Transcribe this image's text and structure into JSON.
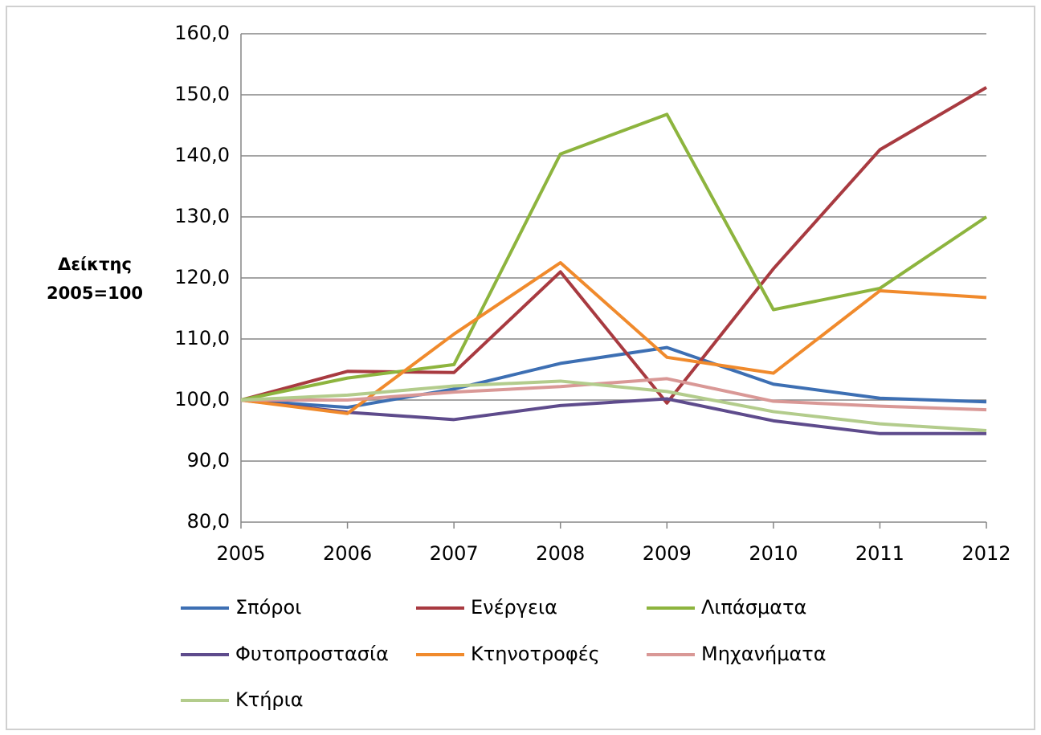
{
  "chart_data": {
    "type": "line",
    "y_label": [
      "Δείκτης",
      "2005=100"
    ],
    "categories": [
      "2005",
      "2006",
      "2007",
      "2008",
      "2009",
      "2010",
      "2011",
      "2012"
    ],
    "series": [
      {
        "name": "Σπόροι",
        "color": "#3d6fb3",
        "values": [
          100,
          98.8,
          101.8,
          106.0,
          108.6,
          102.6,
          100.3,
          99.7
        ]
      },
      {
        "name": "Ενέργεια",
        "color": "#a83a40",
        "values": [
          100,
          104.7,
          104.5,
          121.0,
          99.5,
          121.5,
          141.0,
          151.2
        ]
      },
      {
        "name": "Λιπάσματα",
        "color": "#8db43e",
        "values": [
          100,
          103.6,
          105.8,
          140.3,
          146.8,
          114.8,
          118.3,
          130.0
        ]
      },
      {
        "name": "Φυτοπροστασία",
        "color": "#5e4b8c",
        "values": [
          100,
          98.0,
          96.8,
          99.1,
          100.2,
          96.6,
          94.5,
          94.5
        ]
      },
      {
        "name": "Κτηνοτροφές",
        "color": "#f08a2c",
        "values": [
          100,
          97.8,
          110.8,
          122.5,
          107.0,
          104.4,
          117.9,
          116.8
        ]
      },
      {
        "name": "Μηχανήματα",
        "color": "#d99896",
        "values": [
          100,
          100.0,
          101.3,
          102.2,
          103.5,
          99.8,
          99.0,
          98.4
        ]
      },
      {
        "name": "Κτήρια",
        "color": "#b3cc8c",
        "values": [
          100,
          100.8,
          102.3,
          103.1,
          101.4,
          98.1,
          96.1,
          95.0
        ]
      }
    ],
    "ylim": [
      80,
      160
    ],
    "yticks": [
      {
        "value": 80,
        "label": "80,0"
      },
      {
        "value": 90,
        "label": "90,0"
      },
      {
        "value": 100,
        "label": "100,0"
      },
      {
        "value": 110,
        "label": "110,0"
      },
      {
        "value": 120,
        "label": "120,0"
      },
      {
        "value": 130,
        "label": "130,0"
      },
      {
        "value": 140,
        "label": "140,0"
      },
      {
        "value": 150,
        "label": "150,0"
      },
      {
        "value": 160,
        "label": "160,0"
      }
    ],
    "grid": true,
    "legend": "bottom"
  }
}
